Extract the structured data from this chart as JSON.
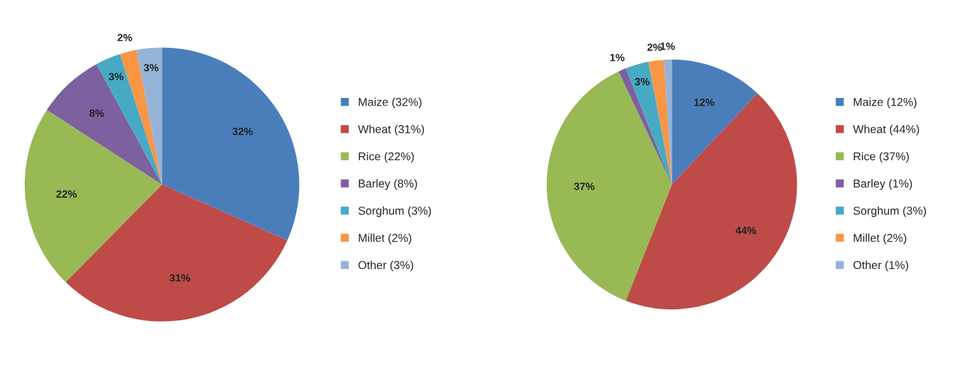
{
  "chart_data": [
    {
      "type": "pie",
      "categories": [
        "Maize (32%)",
        "Wheat (31%)",
        "Rice (22%)",
        "Barley (8%)",
        "Sorghum (3%)",
        "Millet (2%)",
        "Other (3%)"
      ],
      "values": [
        32,
        31,
        22,
        8,
        3,
        2,
        3
      ],
      "value_labels": [
        "32%",
        "31%",
        "22%",
        "8%",
        "3%",
        "2%",
        "3%"
      ],
      "colors": [
        "#4a7ebb",
        "#be4b48",
        "#98b954",
        "#7d60a0",
        "#46aac5",
        "#f79646",
        "#95b3d7"
      ],
      "legend": "right"
    },
    {
      "type": "pie",
      "categories": [
        "Maize (12%)",
        "Wheat (44%)",
        "Rice (37%)",
        "Barley (1%)",
        "Sorghum (3%)",
        "Millet (2%)",
        "Other (1%)"
      ],
      "values": [
        12,
        44,
        37,
        1,
        3,
        2,
        1
      ],
      "value_labels": [
        "12%",
        "44%",
        "37%",
        "1%",
        "3%",
        "2%",
        "1%"
      ],
      "colors": [
        "#4a7ebb",
        "#be4b48",
        "#98b954",
        "#7d60a0",
        "#46aac5",
        "#f79646",
        "#95b3d7"
      ],
      "legend": "right"
    }
  ]
}
